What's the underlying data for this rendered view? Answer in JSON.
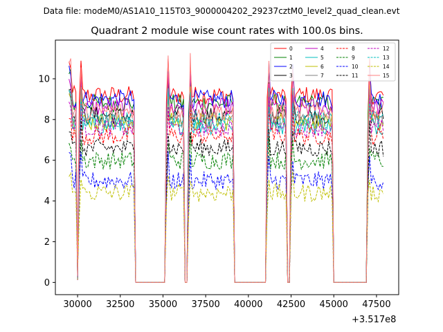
{
  "chart_data": {
    "type": "line",
    "suptitle": "Data file: modeM0/AS1A10_115T03_9000004202_29237cztM0_level2_quad_clean.evt",
    "title": "Quadrant 2 module wise count rates with 100.0s bins.",
    "xlabel": "",
    "ylabel": "",
    "x_offset_text": "+3.517e8",
    "xlim": [
      28700,
      48800
    ],
    "ylim": [
      -0.6,
      11.9
    ],
    "x_ticks": [
      30000,
      32500,
      35000,
      37500,
      40000,
      42500,
      45000,
      47500
    ],
    "x_tick_labels": [
      "30000",
      "32500",
      "35000",
      "37500",
      "40000",
      "42500",
      "45000",
      "47500"
    ],
    "y_ticks": [
      0,
      2,
      4,
      6,
      8,
      10
    ],
    "y_tick_labels": [
      "0",
      "2",
      "4",
      "6",
      "8",
      "10"
    ],
    "grid": false,
    "legend_position": "top-right",
    "segments": [
      {
        "start": 29500,
        "end": 29900
      },
      {
        "start": 30100,
        "end": 33300
      },
      {
        "start": 35200,
        "end": 36200
      },
      {
        "start": 36500,
        "end": 39100
      },
      {
        "start": 41100,
        "end": 42200
      },
      {
        "start": 42500,
        "end": 44900
      },
      {
        "start": 47000,
        "end": 47900
      }
    ],
    "gaps": [
      {
        "start": 33400,
        "end": 35100
      },
      {
        "start": 36300,
        "end": 36400
      },
      {
        "start": 39200,
        "end": 41000
      },
      {
        "start": 42300,
        "end": 42400
      },
      {
        "start": 45000,
        "end": 46900
      }
    ],
    "dips": [
      30000
    ],
    "series": [
      {
        "name": "0",
        "color": "#ff0000",
        "dash": "solid",
        "level": 9.2,
        "peak": 10.7
      },
      {
        "name": "1",
        "color": "#008000",
        "dash": "solid",
        "level": 8.8,
        "peak": 10.1
      },
      {
        "name": "2",
        "color": "#0000ff",
        "dash": "solid",
        "level": 9.0,
        "peak": 10.4
      },
      {
        "name": "3",
        "color": "#000000",
        "dash": "solid",
        "level": 8.2,
        "peak": 9.6
      },
      {
        "name": "4",
        "color": "#bf00bf",
        "dash": "solid",
        "level": 8.6,
        "peak": 9.9
      },
      {
        "name": "5",
        "color": "#00bfbf",
        "dash": "solid",
        "level": 7.7,
        "peak": 9.2
      },
      {
        "name": "6",
        "color": "#bfbf00",
        "dash": "solid",
        "level": 7.9,
        "peak": 9.3
      },
      {
        "name": "7",
        "color": "#808080",
        "dash": "solid",
        "level": 8.0,
        "peak": 9.4
      },
      {
        "name": "8",
        "color": "#ff0000",
        "dash": "dashed",
        "level": 7.2,
        "peak": 8.4
      },
      {
        "name": "9",
        "color": "#008000",
        "dash": "dashed",
        "level": 6.0,
        "peak": 7.0
      },
      {
        "name": "10",
        "color": "#0000ff",
        "dash": "dashed",
        "level": 5.0,
        "peak": 6.0
      },
      {
        "name": "11",
        "color": "#000000",
        "dash": "dashed",
        "level": 6.6,
        "peak": 7.6
      },
      {
        "name": "12",
        "color": "#bf00bf",
        "dash": "dashed",
        "level": 7.6,
        "peak": 8.8
      },
      {
        "name": "13",
        "color": "#00bfbf",
        "dash": "dashed",
        "level": 8.0,
        "peak": 9.0
      },
      {
        "name": "14",
        "color": "#bfbf00",
        "dash": "dashed",
        "level": 4.4,
        "peak": 5.4
      },
      {
        "name": "15",
        "color": "#ff8080",
        "dash": "solid",
        "level": 8.4,
        "peak": 10.9
      }
    ]
  }
}
